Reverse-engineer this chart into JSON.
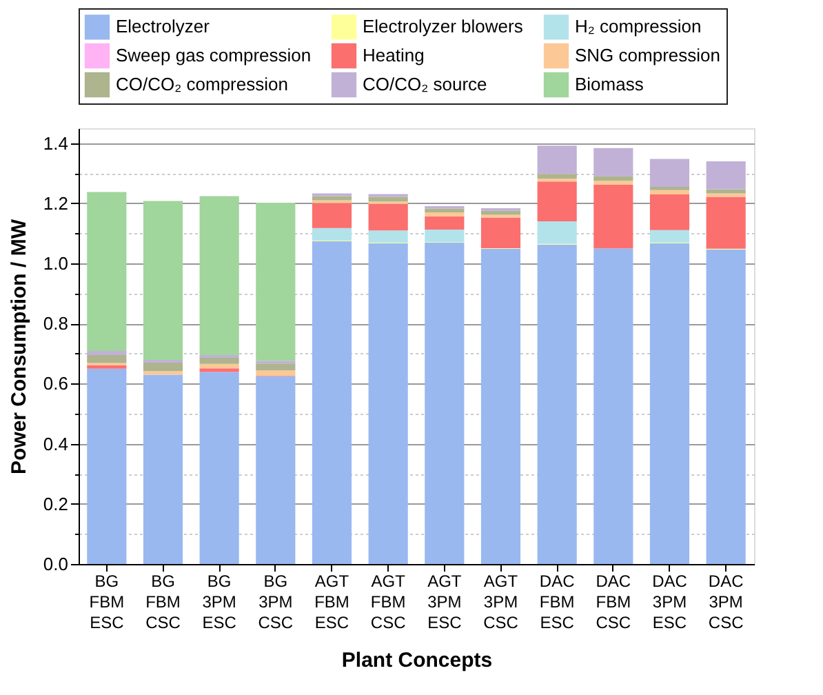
{
  "chart_data": {
    "type": "bar",
    "stacked": true,
    "xlabel": "Plant Concepts",
    "ylabel": "Power Consumption / MW",
    "categories": [
      "BG\nFBM\nESC",
      "BG\nFBM\nCSC",
      "BG\n3PM\nESC",
      "BG\n3PM\nCSC",
      "AGT\nFBM\nESC",
      "AGT\nFBM\nCSC",
      "AGT\n3PM\nESC",
      "AGT\n3PM\nCSC",
      "DAC\nFBM\nESC",
      "DAC\nFBM\nCSC",
      "DAC\n3PM\nESC",
      "DAC\n3PM\nCSC"
    ],
    "series": [
      {
        "name": "Electrolyzer",
        "color": "#99b8f0",
        "values": [
          0.65,
          0.63,
          0.639,
          0.624,
          1.074,
          1.067,
          1.069,
          1.049,
          1.063,
          1.05,
          1.067,
          1.047
        ]
      },
      {
        "name": "Electrolyzer blowers",
        "color": "#ffff99",
        "values": [
          0,
          0,
          0,
          0,
          0.002,
          0.002,
          0.002,
          0.002,
          0.002,
          null,
          0.002,
          0.002
        ]
      },
      {
        "name": "H₂ compression",
        "color": "#b3e3ea",
        "values": [
          0,
          0,
          0,
          0,
          0.042,
          0.041,
          0.042,
          0,
          0.075,
          0,
          0.042,
          0
        ]
      },
      {
        "name": "Sweep gas compression",
        "color": "#ffb3f5",
        "values": [
          0,
          0,
          0,
          0,
          0,
          0,
          0,
          0,
          0,
          0,
          0,
          0
        ]
      },
      {
        "name": "Heating",
        "color": "#fb6f6f",
        "values": [
          0.011,
          null,
          0.012,
          0.002,
          0.083,
          0.088,
          0.044,
          0.102,
          0.133,
          0.212,
          0.119,
          0.173
        ]
      },
      {
        "name": "SNG compression",
        "color": "#fcc896",
        "values": [
          0.008,
          0.012,
          0.015,
          0.018,
          0.009,
          0.008,
          0.013,
          0.009,
          0.009,
          0.013,
          0.014,
          0.011
        ]
      },
      {
        "name": "CO/CO₂ compression",
        "color": "#adb48e",
        "values": [
          0.026,
          0.028,
          0.02,
          0.023,
          0.014,
          0.016,
          0.013,
          0.013,
          0.016,
          0.016,
          0.011,
          0.014
        ]
      },
      {
        "name": "CO/CO₂ source",
        "color": "#c1b1d6",
        "values": [
          0.014,
          0.009,
          0.009,
          0.009,
          0.009,
          0.009,
          0.008,
          0.009,
          0.094,
          0.093,
          0.093,
          0.093
        ]
      },
      {
        "name": "Biomass",
        "color": "#a0d59c",
        "values": [
          0.529,
          0.529,
          0.529,
          0.526,
          0,
          0,
          0,
          0,
          0,
          0,
          0,
          0
        ]
      }
    ],
    "ylim": [
      0,
      1.45
    ],
    "yticks": [
      {
        "value": 0,
        "label": "0.0"
      },
      {
        "value": 0.1,
        "label": null
      },
      0.2,
      {
        "value": 0.3,
        "label": null
      },
      0.4,
      {
        "value": 0.5,
        "label": null
      },
      0.6,
      {
        "value": 0.7,
        "label": null
      },
      0.8,
      {
        "value": 0.9,
        "label": null
      },
      {
        "value": 1,
        "label": "1.0"
      },
      {
        "value": 1.1,
        "label": null
      },
      1.2,
      {
        "value": 1.3,
        "label": null
      },
      1.4
    ],
    "grid": true,
    "legend": "top"
  }
}
